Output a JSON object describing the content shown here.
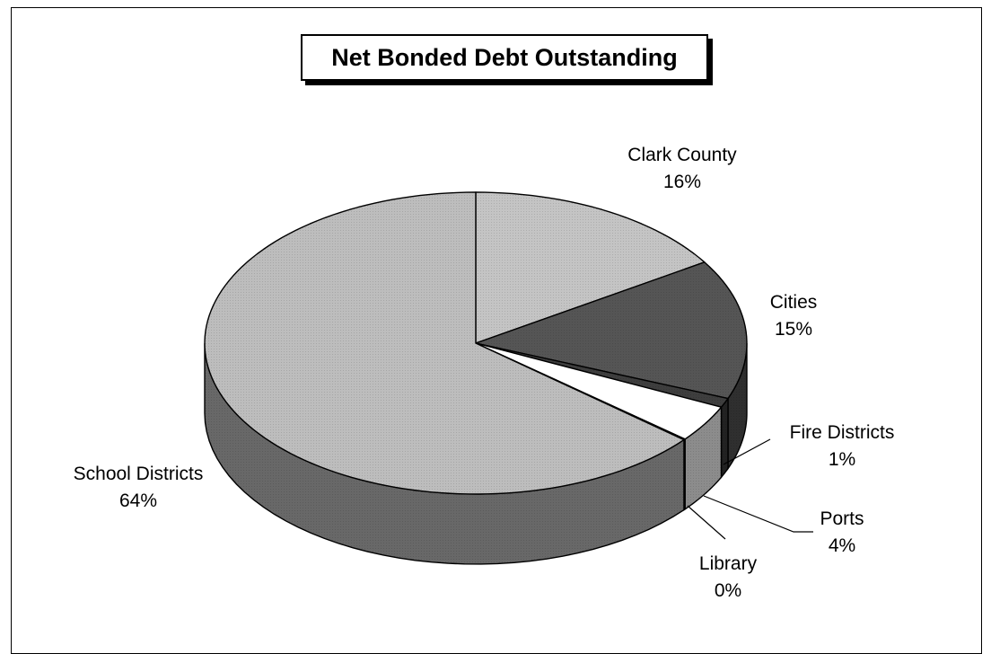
{
  "chart_data": {
    "type": "pie",
    "title": "Net Bonded Debt Outstanding",
    "slices": [
      {
        "label": "Clark County",
        "value": 16,
        "value_label": "16%",
        "color": "#c4c4c4"
      },
      {
        "label": "Cities",
        "value": 15,
        "value_label": "15%",
        "color": "#555555"
      },
      {
        "label": "Fire Districts",
        "value": 1,
        "value_label": "1%",
        "color": "#3e3e3e"
      },
      {
        "label": "Ports",
        "value": 4,
        "value_label": "4%",
        "color": "#ffffff"
      },
      {
        "label": "Library",
        "value": 0,
        "value_label": "0%",
        "color": "#8e8e8e"
      },
      {
        "label": "School Districts",
        "value": 64,
        "value_label": "64%",
        "color": "#bdbdbd"
      }
    ],
    "style": "3d-pie",
    "legend": "none"
  }
}
